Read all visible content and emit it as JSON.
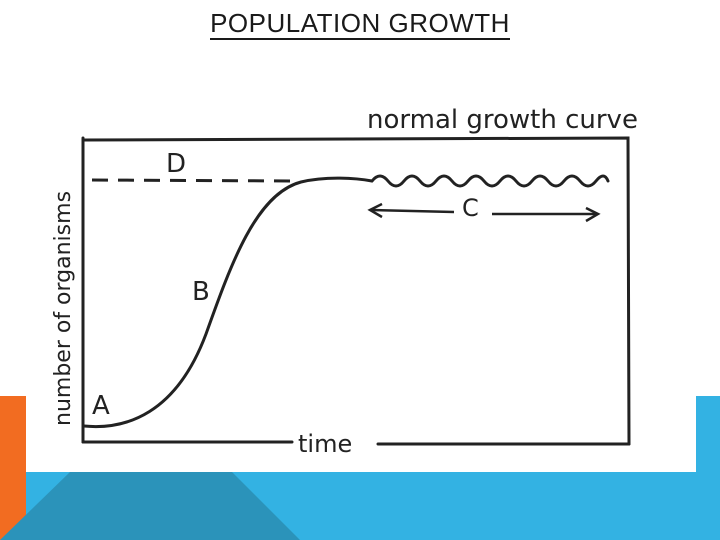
{
  "slide": {
    "title": "POPULATION GROWTH"
  },
  "diagram": {
    "heading": "normal growth curve",
    "y_axis_label": "number of organisms",
    "x_axis_label": "time",
    "labels": {
      "a": "A",
      "b": "B",
      "c": "C",
      "d": "D"
    }
  },
  "colors": {
    "accent_orange": "#f26c21",
    "accent_blue": "#33b2e3",
    "accent_teal": "#2b93ba",
    "ink": "#222222",
    "paper": "#ffffff"
  }
}
